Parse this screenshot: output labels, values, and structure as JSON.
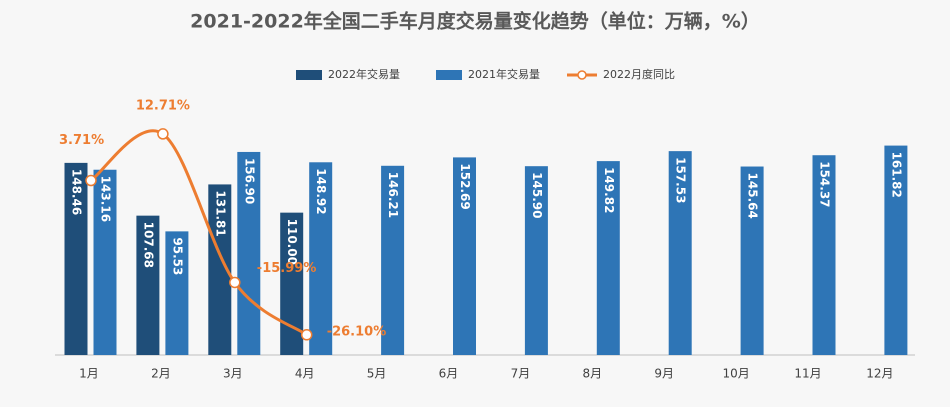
{
  "chart_data": {
    "type": "bar-line",
    "title": "2021-2022年全国二手车月度交易量变化趋势（单位：万辆，%）",
    "categories": [
      "1月",
      "2月",
      "3月",
      "4月",
      "5月",
      "6月",
      "7月",
      "8月",
      "9月",
      "10月",
      "11月",
      "12月"
    ],
    "series": [
      {
        "name": "2022年交易量",
        "type": "bar",
        "color": "#1f4e79",
        "values": [
          148.46,
          107.68,
          131.81,
          110.0,
          null,
          null,
          null,
          null,
          null,
          null,
          null,
          null
        ],
        "value_labels": [
          "148.46",
          "107.68",
          "131.81",
          "110.00",
          null,
          null,
          null,
          null,
          null,
          null,
          null,
          null
        ]
      },
      {
        "name": "2021年交易量",
        "type": "bar",
        "color": "#2e75b6",
        "values": [
          143.16,
          95.53,
          156.9,
          148.92,
          146.21,
          152.69,
          145.9,
          149.82,
          157.53,
          145.64,
          154.37,
          161.82
        ],
        "value_labels": [
          "143.16",
          "95.53",
          "156.90",
          "148.92",
          "146.21",
          "152.69",
          "145.90",
          "149.82",
          "157.53",
          "145.64",
          "154.37",
          "161.82"
        ]
      },
      {
        "name": "2022月度同比",
        "type": "line",
        "axis": "y2",
        "color": "#ed7d31",
        "values": [
          3.71,
          12.71,
          -15.99,
          -26.1,
          null,
          null,
          null,
          null,
          null,
          null,
          null,
          null
        ],
        "value_labels": [
          "3.71%",
          "12.71%",
          "-15.99%",
          "-26.10%",
          null,
          null,
          null,
          null,
          null,
          null,
          null,
          null
        ]
      }
    ],
    "ylim": [
      0,
      170
    ],
    "y2lim": [
      -30,
      12.5
    ],
    "legend": "top"
  }
}
